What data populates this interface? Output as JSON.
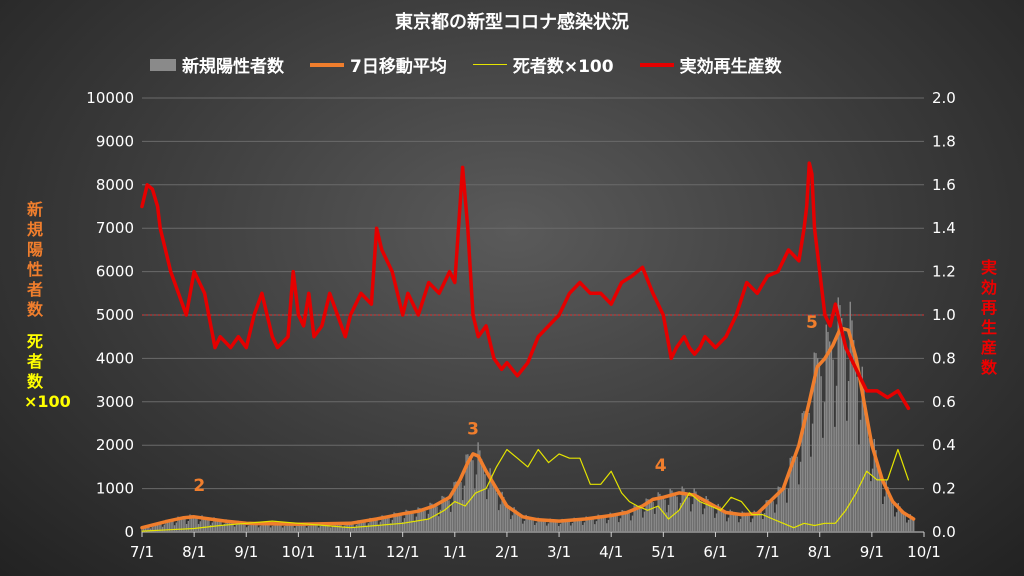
{
  "chart_data": {
    "type": "bar+line",
    "title": "東京都の新型コロナ感染状況",
    "legend": {
      "placement": "top",
      "entries": [
        {
          "label": "新規陽性者数",
          "style": "bar",
          "color": "#8a8a8a"
        },
        {
          "label": "7日移動平均",
          "style": "line",
          "color": "#f07e2d"
        },
        {
          "label": "死者数×100",
          "style": "line",
          "color": "#e4e400"
        },
        {
          "label": "実効再生産数",
          "style": "line",
          "color": "#e50000"
        }
      ]
    },
    "ylabel_left": {
      "part1": "新規陽性者数",
      "part2": "死者数×100"
    },
    "ylabel_right": "実効再生産数",
    "ylim_left": [
      0,
      10000
    ],
    "ylim_right": [
      0,
      2.0
    ],
    "yticks_left": [
      "0",
      "1000",
      "2000",
      "3000",
      "4000",
      "5000",
      "6000",
      "7000",
      "8000",
      "9000",
      "10000"
    ],
    "yticks_right": [
      "0.0",
      "0.2",
      "0.4",
      "0.6",
      "0.8",
      "1.0",
      "1.2",
      "1.4",
      "1.6",
      "1.8",
      "2.0"
    ],
    "reference_line_right": 1.0,
    "x_range_months": [
      0,
      15
    ],
    "xtick_labels": [
      "7/1",
      "8/1",
      "9/1",
      "10/1",
      "11/1",
      "12/1",
      "1/1",
      "2/1",
      "3/1",
      "4/1",
      "5/1",
      "6/1",
      "7/1",
      "8/1",
      "9/1",
      "10/1"
    ],
    "wave_labels": [
      {
        "text": "2",
        "x": 1.1,
        "y": 950
      },
      {
        "text": "3",
        "x": 6.35,
        "y": 2250
      },
      {
        "text": "4",
        "x": 9.95,
        "y": 1400
      },
      {
        "text": "5",
        "x": 12.85,
        "y": 4700
      }
    ],
    "series": [
      {
        "name": "7日移動平均",
        "axis": "left",
        "color": "#f07e2d",
        "x": [
          0,
          0.5,
          0.8,
          1.0,
          1.3,
          1.6,
          2.0,
          2.5,
          3.0,
          3.5,
          4.0,
          4.5,
          5.0,
          5.3,
          5.6,
          5.9,
          6.1,
          6.25,
          6.35,
          6.45,
          6.6,
          6.8,
          7.0,
          7.3,
          7.6,
          8.0,
          8.5,
          9.0,
          9.3,
          9.6,
          9.8,
          10.0,
          10.3,
          10.6,
          10.9,
          11.2,
          11.5,
          11.8,
          12.0,
          12.3,
          12.6,
          12.8,
          12.95,
          13.1,
          13.25,
          13.4,
          13.55,
          13.7,
          13.85,
          14.0,
          14.2,
          14.4,
          14.6,
          14.8
        ],
        "values": [
          100,
          250,
          330,
          350,
          300,
          250,
          200,
          190,
          180,
          190,
          200,
          300,
          420,
          480,
          600,
          800,
          1200,
          1600,
          1800,
          1750,
          1400,
          1000,
          600,
          350,
          280,
          250,
          300,
          380,
          450,
          600,
          750,
          800,
          900,
          850,
          650,
          450,
          400,
          420,
          650,
          1000,
          2000,
          3000,
          3800,
          4000,
          4300,
          4700,
          4650,
          4000,
          3000,
          2000,
          1200,
          700,
          450,
          300
        ]
      },
      {
        "name": "死者数×100",
        "axis": "left",
        "color": "#e4e400",
        "x": [
          0,
          0.5,
          1.0,
          1.5,
          2.0,
          2.5,
          3.0,
          3.5,
          4.0,
          4.5,
          5.0,
          5.5,
          5.8,
          6.0,
          6.2,
          6.4,
          6.6,
          6.8,
          7.0,
          7.2,
          7.4,
          7.6,
          7.8,
          8.0,
          8.2,
          8.4,
          8.6,
          8.8,
          9.0,
          9.2,
          9.35,
          9.5,
          9.7,
          9.9,
          10.1,
          10.3,
          10.5,
          10.7,
          10.9,
          11.1,
          11.3,
          11.5,
          11.7,
          11.9,
          12.1,
          12.3,
          12.5,
          12.7,
          12.9,
          13.1,
          13.3,
          13.5,
          13.7,
          13.9,
          14.1,
          14.3,
          14.5,
          14.7
        ],
        "values": [
          20,
          50,
          80,
          150,
          200,
          250,
          200,
          150,
          100,
          150,
          200,
          300,
          500,
          700,
          600,
          900,
          1000,
          1500,
          1900,
          1700,
          1500,
          1900,
          1600,
          1800,
          1700,
          1700,
          1100,
          1100,
          1400,
          900,
          700,
          600,
          500,
          600,
          300,
          500,
          900,
          700,
          600,
          500,
          800,
          700,
          400,
          400,
          300,
          200,
          100,
          200,
          150,
          200,
          200,
          500,
          900,
          1400,
          1200,
          1200,
          1900,
          1200
        ]
      },
      {
        "name": "実効再生産数",
        "axis": "right",
        "color": "#e50000",
        "x": [
          0,
          0.1,
          0.2,
          0.3,
          0.35,
          0.45,
          0.55,
          0.7,
          0.85,
          1.0,
          1.2,
          1.4,
          1.5,
          1.7,
          1.85,
          2.0,
          2.15,
          2.3,
          2.5,
          2.6,
          2.8,
          2.9,
          3.0,
          3.1,
          3.2,
          3.3,
          3.45,
          3.6,
          3.75,
          3.9,
          4.0,
          4.2,
          4.4,
          4.5,
          4.6,
          4.8,
          5.0,
          5.1,
          5.3,
          5.5,
          5.7,
          5.9,
          6.0,
          6.15,
          6.25,
          6.35,
          6.45,
          6.6,
          6.75,
          6.9,
          7.0,
          7.2,
          7.4,
          7.6,
          7.8,
          8.0,
          8.2,
          8.4,
          8.6,
          8.8,
          9.0,
          9.2,
          9.4,
          9.6,
          9.8,
          10.0,
          10.15,
          10.25,
          10.4,
          10.5,
          10.6,
          10.7,
          10.8,
          11.0,
          11.2,
          11.4,
          11.6,
          11.8,
          12.0,
          12.2,
          12.4,
          12.6,
          12.7,
          12.75,
          12.8,
          12.85,
          12.9,
          13.0,
          13.1,
          13.2,
          13.3,
          13.5,
          13.7,
          13.9,
          14.1,
          14.3,
          14.5,
          14.7
        ],
        "values": [
          1.5,
          1.6,
          1.58,
          1.5,
          1.4,
          1.3,
          1.2,
          1.1,
          1.0,
          1.2,
          1.1,
          0.85,
          0.9,
          0.85,
          0.9,
          0.85,
          1.0,
          1.1,
          0.9,
          0.85,
          0.9,
          1.2,
          1.0,
          0.95,
          1.1,
          0.9,
          0.95,
          1.1,
          1.0,
          0.9,
          1.0,
          1.1,
          1.05,
          1.4,
          1.3,
          1.2,
          1.0,
          1.1,
          1.0,
          1.15,
          1.1,
          1.2,
          1.15,
          1.68,
          1.4,
          1.0,
          0.9,
          0.95,
          0.8,
          0.75,
          0.78,
          0.72,
          0.78,
          0.9,
          0.95,
          1.0,
          1.1,
          1.15,
          1.1,
          1.1,
          1.05,
          1.15,
          1.18,
          1.22,
          1.1,
          1.0,
          0.8,
          0.85,
          0.9,
          0.85,
          0.82,
          0.85,
          0.9,
          0.85,
          0.9,
          1.0,
          1.15,
          1.1,
          1.18,
          1.2,
          1.3,
          1.25,
          1.4,
          1.5,
          1.7,
          1.65,
          1.4,
          1.2,
          1.0,
          0.95,
          1.05,
          0.85,
          0.75,
          0.65,
          0.65,
          0.62,
          0.65,
          0.57
        ]
      }
    ],
    "bars": {
      "name": "新規陽性者数",
      "axis": "left",
      "color": "#8a8a8a",
      "description_source": "daily counts approximated from the 7-day average"
    }
  }
}
